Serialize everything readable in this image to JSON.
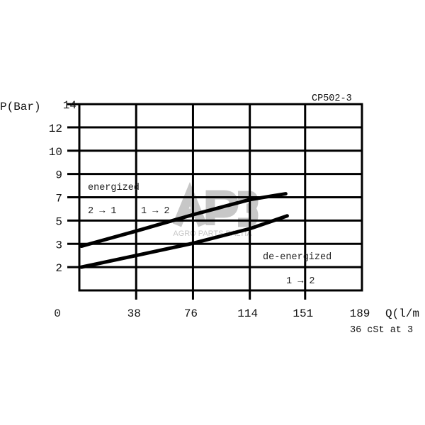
{
  "chart_data": {
    "type": "line",
    "title": "",
    "chart_id": "CP502-3",
    "ylabel": "P(Bar)",
    "xlabel": "Q(l/m",
    "footnote": "36 cSt at 3",
    "x_ticks": [
      "0",
      "38",
      "76",
      "114",
      "151",
      "189"
    ],
    "x_tick_values": [
      0,
      38,
      76,
      114,
      151,
      189
    ],
    "y_ticks": [
      "14",
      "12",
      "10",
      "9",
      "7",
      "5",
      "3",
      "2"
    ],
    "y_tick_values": [
      14,
      12,
      10,
      9,
      7,
      5,
      3,
      2
    ],
    "y_scale_note": "equally spaced tick labels (non-linear)",
    "xlim": [
      0,
      189
    ],
    "grid": true,
    "series": [
      {
        "x": [
          1.4,
          38,
          76,
          114,
          138
        ],
        "y": [
          2.9,
          4.1,
          5.5,
          6.8,
          7.3
        ]
      },
      {
        "x": [
          1.4,
          38,
          76,
          114,
          139
        ],
        "y": [
          2.0,
          2.5,
          3.05,
          4.3,
          5.4
        ]
      }
    ],
    "annotations": {
      "energized": "energized",
      "flow_2_1": "2 → 1",
      "flow_1_2_top": "1 → 2",
      "deenergized": "de-energized",
      "flow_1_2_bottom": "1 → 2"
    },
    "watermark": {
      "logo": "AP3",
      "text": "AGRO PARTS BALTIA"
    }
  }
}
